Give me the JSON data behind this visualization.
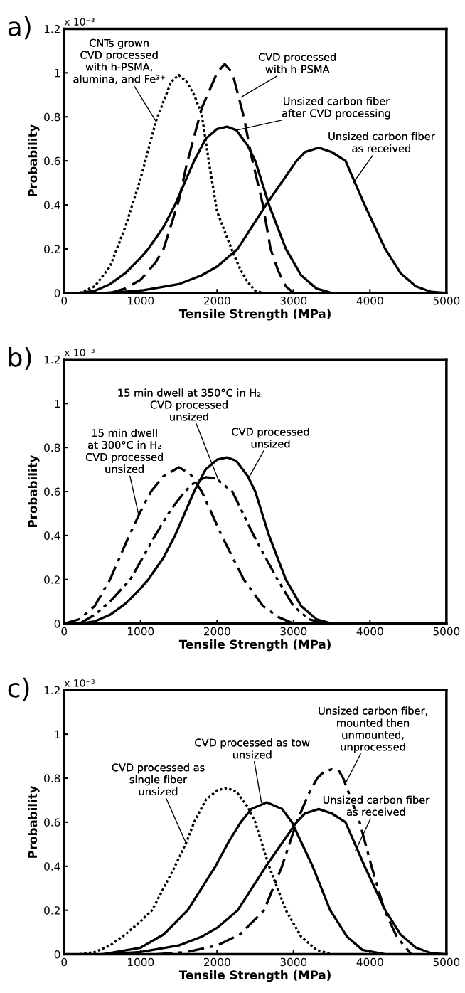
{
  "chart_data": [
    {
      "type": "line",
      "title": "a)",
      "xlabel": "Tensile Strength (MPa)",
      "ylabel": "Probability",
      "xlim": [
        0,
        5000
      ],
      "ylim": [
        0,
        1.2
      ],
      "xticks": [
        0,
        1000,
        2000,
        3000,
        4000,
        5000
      ],
      "yticks": [
        0,
        0.2,
        0.4,
        0.6,
        0.8,
        1,
        1.2
      ],
      "series": [
        {
          "color": "#000000",
          "line_style": "dotted",
          "x": [
            200,
            400,
            600,
            800,
            1000,
            1200,
            1400,
            1500,
            1600,
            1700,
            1800,
            1900,
            2000,
            2100,
            2200,
            2300,
            2400,
            2500,
            2600
          ],
          "values": [
            0,
            0.03,
            0.12,
            0.3,
            0.52,
            0.78,
            0.96,
            0.99,
            0.96,
            0.9,
            0.81,
            0.58,
            0.37,
            0.28,
            0.19,
            0.11,
            0.05,
            0.01,
            0
          ]
        },
        {
          "color": "#000000",
          "line_style": "dashed",
          "x": [
            600,
            800,
            1000,
            1200,
            1300,
            1500,
            1600,
            1800,
            2000,
            2100,
            2200,
            2350,
            2450,
            2600,
            2700,
            2800,
            2900,
            3000
          ],
          "values": [
            0,
            0.02,
            0.06,
            0.14,
            0.2,
            0.42,
            0.58,
            0.84,
            1.0,
            1.04,
            1.0,
            0.8,
            0.62,
            0.4,
            0.2,
            0.1,
            0.03,
            0
          ]
        },
        {
          "color": "#000000",
          "line_style": "solid",
          "x": [
            200,
            400,
            600,
            800,
            1000,
            1100,
            1300,
            1450,
            1600,
            1700,
            1850,
            2000,
            2130,
            2250,
            2400,
            2500,
            2680,
            2900,
            3100,
            3300,
            3500
          ],
          "values": [
            0,
            0.01,
            0.04,
            0.09,
            0.16,
            0.2,
            0.3,
            0.4,
            0.52,
            0.6,
            0.7,
            0.745,
            0.755,
            0.74,
            0.67,
            0.6,
            0.4,
            0.2,
            0.08,
            0.02,
            0
          ]
        },
        {
          "color": "#000000",
          "line_style": "solid",
          "x": [
            500,
            1000,
            1500,
            1800,
            2000,
            2270,
            2640,
            3040,
            3150,
            3330,
            3500,
            3680,
            3930,
            4200,
            4400,
            4600,
            4800,
            5000
          ],
          "values": [
            0,
            0.01,
            0.04,
            0.08,
            0.12,
            0.2,
            0.4,
            0.6,
            0.64,
            0.66,
            0.64,
            0.6,
            0.4,
            0.2,
            0.09,
            0.03,
            0.005,
            0
          ]
        }
      ],
      "annotations": [
        "x 10⁻³",
        {
          "text": "CNTs grown\nCVD processed\nwith h-PSMA,\nalumina, and Fe³⁺",
          "x": 1200,
          "y": 0.78
        },
        {
          "text": "CVD processed\nwith h-PSMA",
          "x": 2320,
          "y": 0.89
        },
        {
          "text": "Unsized carbon fiber\nafter CVD processing",
          "x": 2260,
          "y": 0.74
        },
        {
          "text": "Unsized carbon fiber\nas received",
          "x": 3780,
          "y": 0.5
        }
      ]
    },
    {
      "type": "line",
      "title": "b)",
      "xlabel": "Tensile Strength (MPa)",
      "ylabel": "Probability",
      "xlim": [
        0,
        5000
      ],
      "ylim": [
        0,
        1.2
      ],
      "xticks": [
        0,
        1000,
        2000,
        3000,
        4000,
        5000
      ],
      "yticks": [
        0,
        0.2,
        0.4,
        0.6,
        0.8,
        1,
        1.2
      ],
      "series": [
        {
          "color": "#000000",
          "line_style": "dashdot",
          "x": [
            0,
            200,
            400,
            600,
            850,
            1000,
            1135,
            1300,
            1500,
            1650,
            1800,
            2060,
            2350,
            2600,
            2800,
            3000
          ],
          "values": [
            0,
            0.02,
            0.08,
            0.2,
            0.4,
            0.51,
            0.6,
            0.67,
            0.71,
            0.68,
            0.6,
            0.4,
            0.2,
            0.08,
            0.03,
            0
          ]
        },
        {
          "color": "#000000",
          "line_style": "dashdotdot",
          "x": [
            200,
            400,
            600,
            865,
            1190,
            1400,
            1580,
            1700,
            1850,
            2000,
            2050,
            2200,
            2480,
            2790,
            3000,
            3200,
            3400
          ],
          "values": [
            0,
            0.04,
            0.1,
            0.2,
            0.4,
            0.52,
            0.6,
            0.64,
            0.665,
            0.66,
            0.64,
            0.6,
            0.4,
            0.2,
            0.08,
            0.02,
            0
          ]
        },
        {
          "color": "#000000",
          "line_style": "solid",
          "x": [
            200,
            400,
            600,
            800,
            1000,
            1100,
            1300,
            1450,
            1600,
            1700,
            1850,
            2000,
            2130,
            2250,
            2400,
            2500,
            2680,
            2900,
            3100,
            3300,
            3500
          ],
          "values": [
            0,
            0.01,
            0.04,
            0.09,
            0.16,
            0.2,
            0.3,
            0.4,
            0.52,
            0.6,
            0.7,
            0.745,
            0.755,
            0.74,
            0.67,
            0.6,
            0.4,
            0.2,
            0.08,
            0.02,
            0
          ]
        }
      ],
      "annotations": [
        "x 10⁻³",
        {
          "text": "15 min dwell\nat 300°C in H₂\nCVD processed\nunsized",
          "x": 970,
          "y": 0.5
        },
        {
          "text": "15 min dwell at 350°C in H₂\nCVD processed\nunsized",
          "x": 2020,
          "y": 0.65
        },
        {
          "text": "CVD processed\nunsized",
          "x": 2410,
          "y": 0.66
        }
      ]
    },
    {
      "type": "line",
      "title": "c)",
      "xlabel": "Tensile Strength (MPa)",
      "ylabel": "Probability",
      "xlim": [
        0,
        5000
      ],
      "ylim": [
        0,
        1.2
      ],
      "xticks": [
        0,
        1000,
        2000,
        3000,
        4000,
        5000
      ],
      "yticks": [
        0,
        0.2,
        0.4,
        0.6,
        0.8,
        1,
        1.2
      ],
      "series": [
        {
          "color": "#000000",
          "line_style": "dotted",
          "x": [
            200,
            400,
            600,
            800,
            1000,
            1150,
            1300,
            1450,
            1600,
            1700,
            1850,
            2000,
            2130,
            2250,
            2400,
            2500,
            2680,
            2900,
            3100,
            3300,
            3500
          ],
          "values": [
            0,
            0.01,
            0.04,
            0.09,
            0.15,
            0.2,
            0.3,
            0.4,
            0.51,
            0.6,
            0.7,
            0.745,
            0.755,
            0.74,
            0.67,
            0.6,
            0.4,
            0.2,
            0.08,
            0.02,
            0
          ]
        },
        {
          "color": "#000000",
          "line_style": "solid",
          "x": [
            500,
            1000,
            1300,
            1615,
            1980,
            2150,
            2310,
            2450,
            2650,
            2850,
            2980,
            3100,
            3250,
            3480,
            3700,
            3900,
            4200
          ],
          "values": [
            0,
            0.03,
            0.09,
            0.2,
            0.4,
            0.51,
            0.6,
            0.66,
            0.69,
            0.66,
            0.6,
            0.51,
            0.4,
            0.2,
            0.08,
            0.02,
            0
          ]
        },
        {
          "color": "#000000",
          "line_style": "solid",
          "x": [
            500,
            1000,
            1500,
            1800,
            2000,
            2270,
            2640,
            3040,
            3150,
            3330,
            3500,
            3680,
            3930,
            4200,
            4400,
            4600,
            4800,
            5000
          ],
          "values": [
            0,
            0.01,
            0.04,
            0.08,
            0.12,
            0.2,
            0.4,
            0.6,
            0.64,
            0.66,
            0.64,
            0.6,
            0.4,
            0.2,
            0.09,
            0.03,
            0.005,
            0
          ]
        },
        {
          "color": "#000000",
          "line_style": "dashdot",
          "x": [
            1200,
            1600,
            2000,
            2300,
            2615,
            2850,
            3040,
            3200,
            3310,
            3400,
            3500,
            3600,
            3650,
            3865,
            4020,
            4190,
            4350,
            4540
          ],
          "values": [
            0,
            0.01,
            0.04,
            0.09,
            0.2,
            0.4,
            0.6,
            0.73,
            0.8,
            0.83,
            0.84,
            0.83,
            0.8,
            0.6,
            0.4,
            0.2,
            0.08,
            0
          ]
        }
      ],
      "annotations": [
        "x 10⁻³",
        {
          "text": "CVD processed as\nsingle fiber\nunsized",
          "x": 1600,
          "y": 0.5
        },
        {
          "text": "CVD processed as tow\nunsized",
          "x": 2580,
          "y": 0.69
        },
        {
          "text": "Unsized carbon fiber,\nmounted then\nunmounted,\nunprocessed",
          "x": 3670,
          "y": 0.77
        },
        {
          "text": "Unsized carbon fiber\nas received",
          "x": 3810,
          "y": 0.47
        }
      ]
    }
  ]
}
